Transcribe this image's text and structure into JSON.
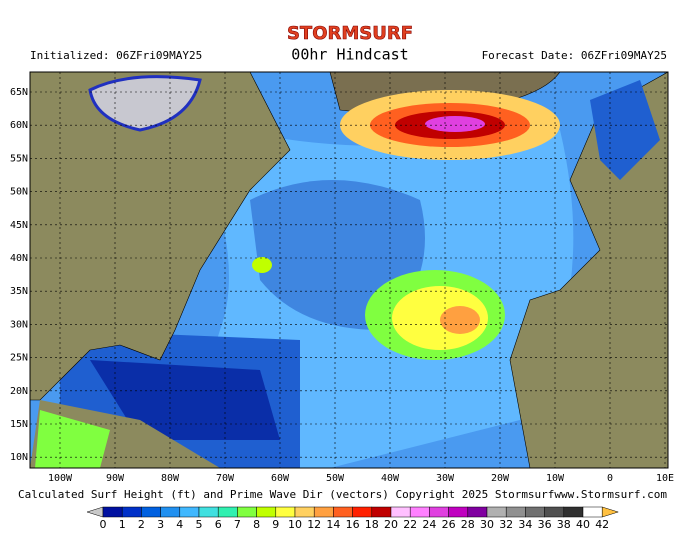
{
  "header": {
    "brand": "STORMSURF",
    "title": "00hr Hindcast",
    "initialized": "Initialized: 06ZFri09MAY25",
    "forecast_date": "Forecast Date: 06ZFri09MAY25"
  },
  "map": {
    "lat_labels": [
      "65N",
      "60N",
      "55N",
      "50N",
      "45N",
      "40N",
      "35N",
      "30N",
      "25N",
      "20N",
      "15N",
      "10N"
    ],
    "lon_labels": [
      "100W",
      "90W",
      "80W",
      "70W",
      "60W",
      "50W",
      "40W",
      "30W",
      "20W",
      "10W",
      "0",
      "10E"
    ]
  },
  "footer": {
    "caption": "Calculated Surf Height (ft) and Prime Wave Dir (vectors) Copyright 2025 Stormsurf",
    "site": "www.Stormsurf.com"
  },
  "scale": {
    "labels": [
      0,
      1,
      2,
      3,
      4,
      5,
      6,
      7,
      8,
      9,
      10,
      12,
      14,
      16,
      18,
      20,
      22,
      24,
      26,
      28,
      30,
      32,
      34,
      36,
      38,
      40,
      42
    ],
    "colors": [
      "#0010a0",
      "#0030c8",
      "#0060e0",
      "#2090f0",
      "#40b8ff",
      "#40e0e0",
      "#30f0b0",
      "#80ff40",
      "#c0ff00",
      "#ffff40",
      "#ffd060",
      "#ffa040",
      "#ff6020",
      "#ff2000",
      "#c00000",
      "#ffc0ff",
      "#ff80ff",
      "#e040e0",
      "#c000c0",
      "#8000a0",
      "#b0b0b0",
      "#909090",
      "#707070",
      "#505050",
      "#303030",
      "#ffffff"
    ],
    "low_color": "#c8c8c8",
    "high_color": "#ffc040"
  }
}
